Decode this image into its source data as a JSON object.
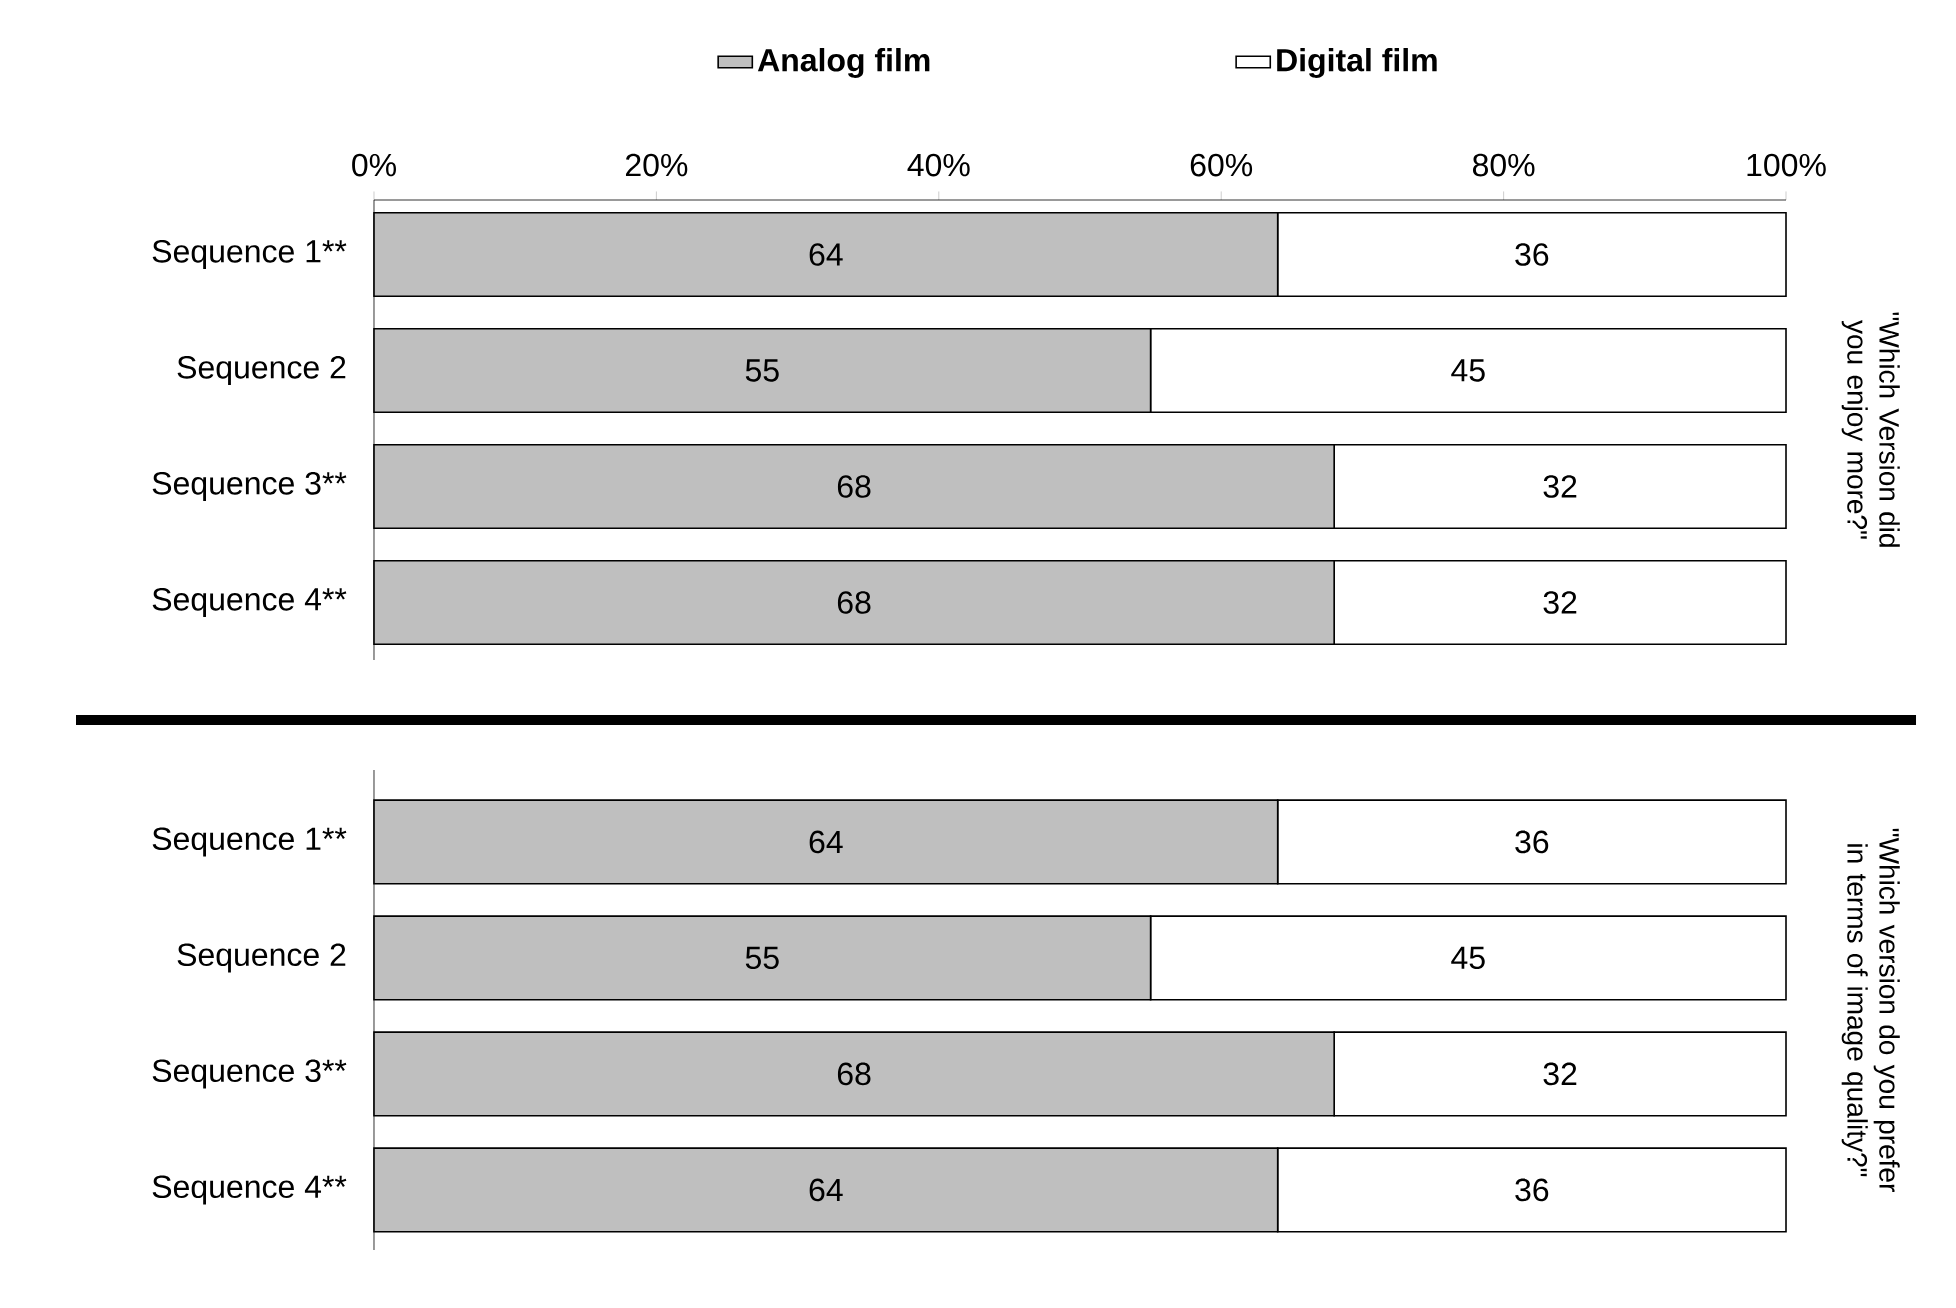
{
  "chart_data": [
    {
      "type": "bar",
      "orientation": "horizontal",
      "stacked": true,
      "categories": [
        "Sequence 1**",
        "Sequence 2",
        "Sequence 3**",
        "Sequence 4**"
      ],
      "series": [
        {
          "name": "Analog film",
          "color": "#bfbfbf",
          "values": [
            64,
            55,
            68,
            68
          ]
        },
        {
          "name": "Digital film",
          "color": "#ffffff",
          "values": [
            36,
            45,
            32,
            32
          ]
        }
      ],
      "xlim": [
        0,
        100
      ],
      "xticks": [
        {
          "value": 0,
          "label": "0%"
        },
        {
          "value": 20,
          "label": "20%"
        },
        {
          "value": 40,
          "label": "40%"
        },
        {
          "value": 60,
          "label": "60%"
        },
        {
          "value": 80,
          "label": "80%"
        },
        {
          "value": 100,
          "label": "100%"
        }
      ],
      "y2label": "\"Which Version did you enjoy more?\"",
      "data_labels": true,
      "legend": "top",
      "grid": false
    },
    {
      "type": "bar",
      "orientation": "horizontal",
      "stacked": true,
      "categories": [
        "Sequence 1**",
        "Sequence 2",
        "Sequence 3**",
        "Sequence 4**"
      ],
      "series": [
        {
          "color": "#bfbfbf",
          "values": [
            64,
            55,
            68,
            64
          ]
        },
        {
          "color": "#ffffff",
          "values": [
            36,
            45,
            32,
            36
          ]
        }
      ],
      "xlim": [
        0,
        100
      ],
      "tick_labels": "y",
      "y2label": "\"Which version do you prefer in terms of image quality?\"",
      "data_labels": true,
      "grid": false
    }
  ]
}
